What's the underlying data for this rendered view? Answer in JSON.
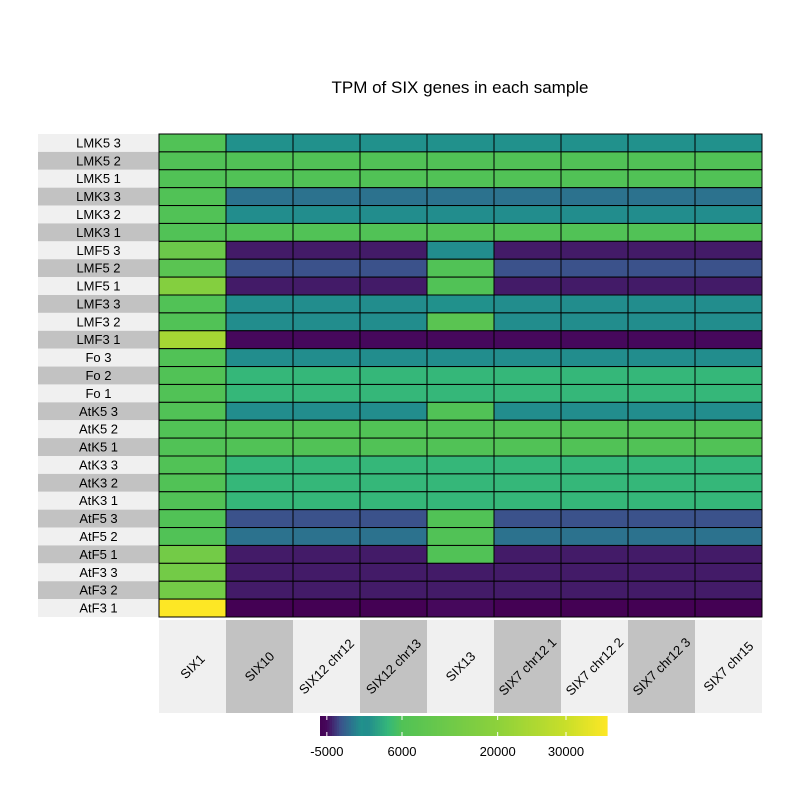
{
  "chart_data": {
    "type": "heatmap",
    "title": "TPM of SIX genes in each sample",
    "columns": [
      "SIX1",
      "SIX10",
      "SIX12 chr12",
      "SIX12 chr13",
      "SIX13",
      "SIX7 chr12 1",
      "SIX7 chr12 2",
      "SIX7 chr12 3",
      "SIX7 chr15"
    ],
    "rows": [
      "LMK5 3",
      "LMK5 2",
      "LMK5 1",
      "LMK3 3",
      "LMK3 2",
      "LMK3 1",
      "LMF5 3",
      "LMF5 2",
      "LMF5 1",
      "LMF3 3",
      "LMF3 2",
      "LMF3 1",
      "Fo 3",
      "Fo 2",
      "Fo 1",
      "AtK5 3",
      "AtK5 2",
      "AtK5 1",
      "AtK3 3",
      "AtK3 2",
      "AtK3 1",
      "AtF5 3",
      "AtF5 2",
      "AtF5 1",
      "AtF3 3",
      "AtF3 2",
      "AtF3 1"
    ],
    "values": [
      [
        6000,
        0,
        0,
        0,
        0,
        0,
        0,
        0,
        0
      ],
      [
        6000,
        6000,
        6000,
        6000,
        6000,
        6000,
        6000,
        6000,
        6000
      ],
      [
        6000,
        6000,
        6000,
        6000,
        6000,
        6000,
        6000,
        6000,
        6000
      ],
      [
        6000,
        -1500,
        -1500,
        -1500,
        -1500,
        -1500,
        -1500,
        -1500,
        -1500
      ],
      [
        6000,
        1000,
        1000,
        1000,
        1000,
        1000,
        1000,
        1000,
        1000
      ],
      [
        6000,
        6000,
        6000,
        6000,
        6000,
        6000,
        6000,
        6000,
        6000
      ],
      [
        12000,
        -4500,
        -4500,
        -4500,
        1000,
        -4500,
        -4500,
        -4500,
        -4500
      ],
      [
        8000,
        -3000,
        -3000,
        -3000,
        6000,
        -3000,
        -3000,
        -3000,
        -3000
      ],
      [
        18000,
        -4500,
        -4500,
        -4500,
        6000,
        -4500,
        -4500,
        -4500,
        -4500
      ],
      [
        6000,
        1000,
        1000,
        1000,
        0,
        1000,
        1000,
        1000,
        1000
      ],
      [
        6000,
        1000,
        1000,
        1000,
        8000,
        1000,
        1000,
        1000,
        1000
      ],
      [
        24000,
        -5000,
        -5000,
        -5000,
        -5000,
        -5000,
        -5000,
        -5000,
        -5000
      ],
      [
        6000,
        1000,
        1000,
        1000,
        1000,
        1000,
        1000,
        1000,
        1000
      ],
      [
        6000,
        4000,
        4000,
        4000,
        4000,
        4000,
        4000,
        4000,
        4000
      ],
      [
        6000,
        4000,
        4000,
        4000,
        4000,
        4000,
        4000,
        4000,
        4000
      ],
      [
        6000,
        1000,
        1000,
        1000,
        6000,
        1000,
        1000,
        1000,
        1000
      ],
      [
        6000,
        6000,
        6000,
        6000,
        6000,
        6000,
        6000,
        6000,
        6000
      ],
      [
        6000,
        6000,
        6000,
        6000,
        6000,
        6000,
        6000,
        6000,
        6000
      ],
      [
        6000,
        4000,
        4000,
        4000,
        4000,
        4000,
        4000,
        4000,
        4000
      ],
      [
        6000,
        4000,
        4000,
        4000,
        4000,
        4000,
        4000,
        4000,
        4000
      ],
      [
        6000,
        4000,
        4000,
        4000,
        4000,
        4000,
        4000,
        4000,
        4000
      ],
      [
        6000,
        -3000,
        -3000,
        -3000,
        6000,
        -3000,
        -3000,
        -3000,
        -3000
      ],
      [
        6000,
        -1500,
        -1500,
        -1500,
        6000,
        -1500,
        -1500,
        -1500,
        -1500
      ],
      [
        14000,
        -4500,
        -4500,
        -4500,
        6000,
        -4500,
        -4500,
        -4500,
        -4500
      ],
      [
        14000,
        -4500,
        -4500,
        -4500,
        -4500,
        -4500,
        -4500,
        -4500,
        -4500
      ],
      [
        14000,
        -4500,
        -4500,
        -4500,
        -4500,
        -4500,
        -4500,
        -4500,
        -4500
      ],
      [
        36000,
        -6000,
        -6000,
        -6000,
        -5000,
        -6000,
        -6000,
        -6000,
        -6000
      ]
    ],
    "colorbar": {
      "ticks": [
        -5000,
        6000,
        20000,
        30000
      ],
      "tick_labels": [
        "-5000",
        "6000",
        "20000",
        "30000"
      ],
      "range": [
        -6000,
        36000
      ],
      "stops": [
        {
          "v": -6000,
          "color": "#440154"
        },
        {
          "v": -5000,
          "color": "#46085c"
        },
        {
          "v": -3000,
          "color": "#3b528b"
        },
        {
          "v": -1500,
          "color": "#2c728e"
        },
        {
          "v": 0,
          "color": "#21918c"
        },
        {
          "v": 1000,
          "color": "#228d8d"
        },
        {
          "v": 4000,
          "color": "#35b779"
        },
        {
          "v": 6000,
          "color": "#51c256"
        },
        {
          "v": 20000,
          "color": "#8dd13b"
        },
        {
          "v": 30000,
          "color": "#c9df2a"
        },
        {
          "v": 36000,
          "color": "#fde725"
        }
      ]
    },
    "cell_border_color": "#000000",
    "row_label_bg": [
      "#f0f0f0",
      "#c2c2c2"
    ],
    "column_label_bg": [
      "#f0f0f0",
      "#c2c2c2"
    ],
    "grid": false,
    "legend_placement": "bottom"
  }
}
